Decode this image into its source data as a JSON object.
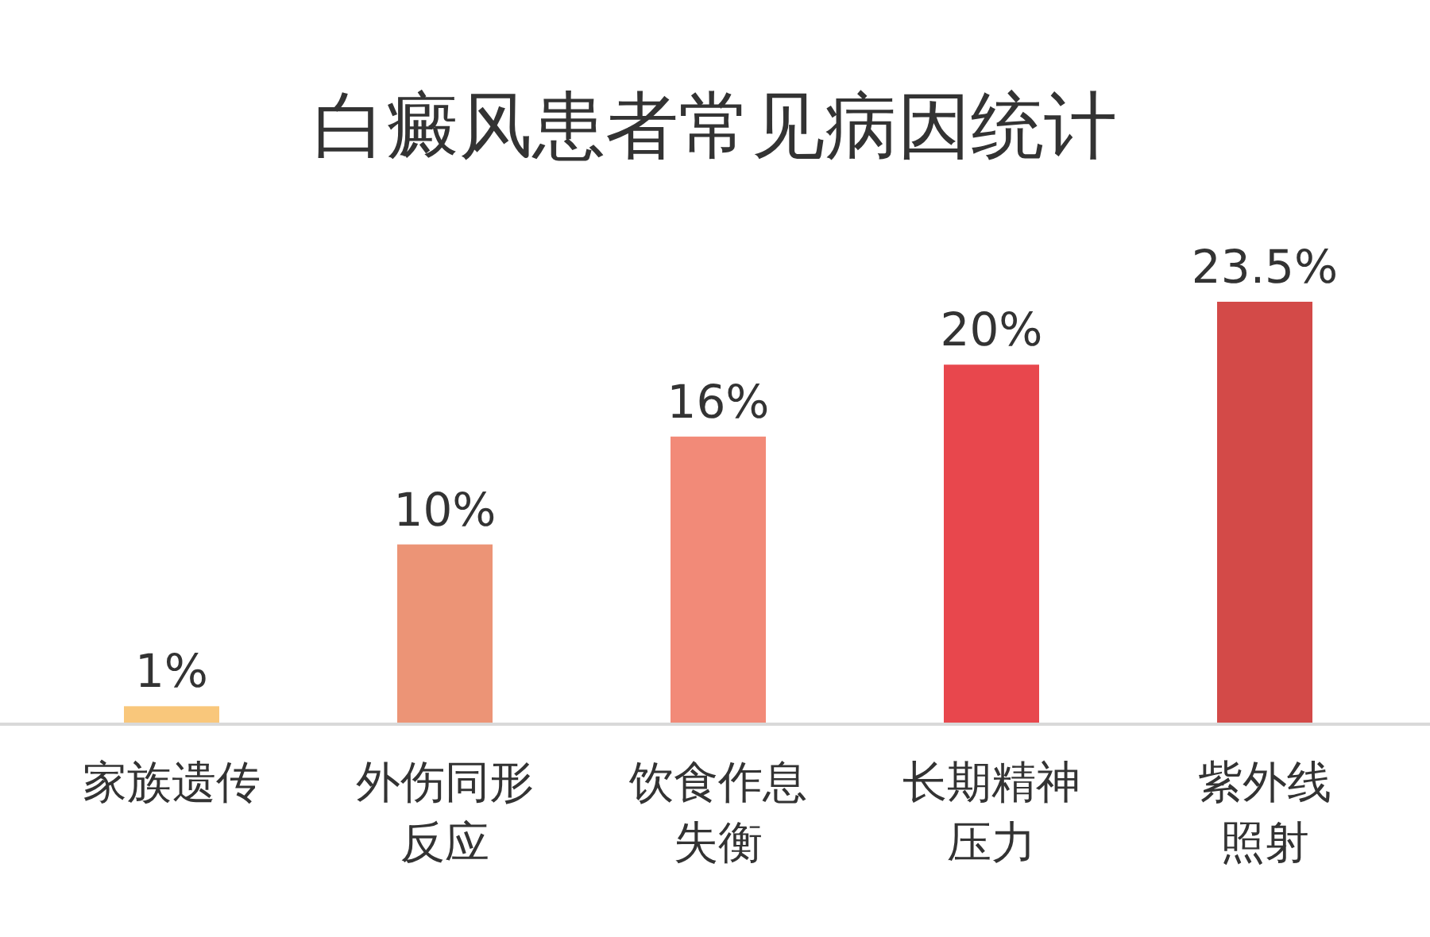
{
  "chart_data": {
    "type": "bar",
    "title": "白癜风患者常见病因统计",
    "categories": [
      "家族遗传",
      "外伤同形反应",
      "饮食作息失衡",
      "长期精神压力",
      "紫外线照射"
    ],
    "values": [
      1,
      10,
      16,
      20,
      23.5
    ],
    "value_labels": [
      "1%",
      "10%",
      "16%",
      "20%",
      "23.5%"
    ],
    "colors": [
      "#f9c77b",
      "#ec9476",
      "#f28a78",
      "#e8474d",
      "#d34a48"
    ]
  }
}
